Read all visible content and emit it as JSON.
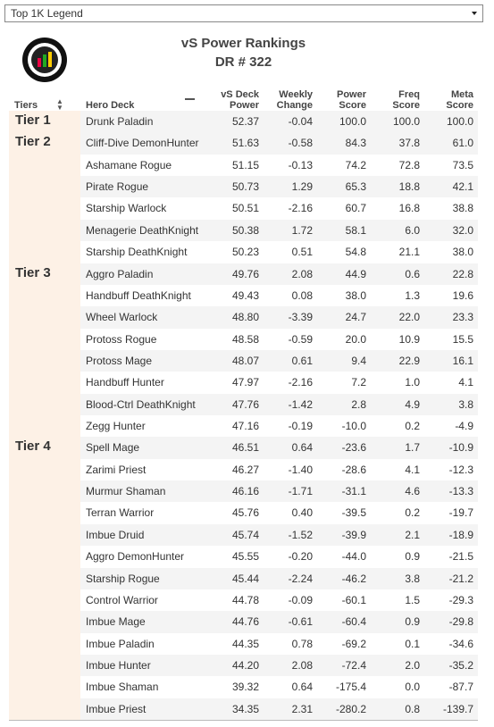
{
  "dropdown": "Top 1K Legend",
  "header": {
    "title": "vS Power Rankings",
    "subtitle": "DR # 322"
  },
  "table": {
    "columns": [
      "Tiers",
      "Hero Deck",
      "vS Deck Power",
      "Weekly Change",
      "Power Score",
      "Freq Score",
      "Meta Score"
    ],
    "groups": [
      {
        "tier": "Tier 1",
        "rows": [
          [
            "Drunk Paladin",
            "52.37",
            "-0.04",
            "100.0",
            "100.0",
            "100.0"
          ]
        ]
      },
      {
        "tier": "Tier 2",
        "rows": [
          [
            "Cliff-Dive DemonHunter",
            "51.63",
            "-0.58",
            "84.3",
            "37.8",
            "61.0"
          ],
          [
            "Ashamane Rogue",
            "51.15",
            "-0.13",
            "74.2",
            "72.8",
            "73.5"
          ],
          [
            "Pirate Rogue",
            "50.73",
            "1.29",
            "65.3",
            "18.8",
            "42.1"
          ],
          [
            "Starship Warlock",
            "50.51",
            "-2.16",
            "60.7",
            "16.8",
            "38.8"
          ],
          [
            "Menagerie DeathKnight",
            "50.38",
            "1.72",
            "58.1",
            "6.0",
            "32.0"
          ],
          [
            "Starship DeathKnight",
            "50.23",
            "0.51",
            "54.8",
            "21.1",
            "38.0"
          ]
        ]
      },
      {
        "tier": "Tier 3",
        "rows": [
          [
            "Aggro Paladin",
            "49.76",
            "2.08",
            "44.9",
            "0.6",
            "22.8"
          ],
          [
            "Handbuff DeathKnight",
            "49.43",
            "0.08",
            "38.0",
            "1.3",
            "19.6"
          ],
          [
            "Wheel Warlock",
            "48.80",
            "-3.39",
            "24.7",
            "22.0",
            "23.3"
          ],
          [
            "Protoss Rogue",
            "48.58",
            "-0.59",
            "20.0",
            "10.9",
            "15.5"
          ],
          [
            "Protoss Mage",
            "48.07",
            "0.61",
            "9.4",
            "22.9",
            "16.1"
          ],
          [
            "Handbuff Hunter",
            "47.97",
            "-2.16",
            "7.2",
            "1.0",
            "4.1"
          ],
          [
            "Blood-Ctrl DeathKnight",
            "47.76",
            "-1.42",
            "2.8",
            "4.9",
            "3.8"
          ],
          [
            "Zegg Hunter",
            "47.16",
            "-0.19",
            "-10.0",
            "0.2",
            "-4.9"
          ]
        ]
      },
      {
        "tier": "Tier 4",
        "rows": [
          [
            "Spell Mage",
            "46.51",
            "0.64",
            "-23.6",
            "1.7",
            "-10.9"
          ],
          [
            "Zarimi Priest",
            "46.27",
            "-1.40",
            "-28.6",
            "4.1",
            "-12.3"
          ],
          [
            "Murmur Shaman",
            "46.16",
            "-1.71",
            "-31.1",
            "4.6",
            "-13.3"
          ],
          [
            "Terran Warrior",
            "45.76",
            "0.40",
            "-39.5",
            "0.2",
            "-19.7"
          ],
          [
            "Imbue Druid",
            "45.74",
            "-1.52",
            "-39.9",
            "2.1",
            "-18.9"
          ],
          [
            "Aggro DemonHunter",
            "45.55",
            "-0.20",
            "-44.0",
            "0.9",
            "-21.5"
          ],
          [
            "Starship Rogue",
            "45.44",
            "-2.24",
            "-46.2",
            "3.8",
            "-21.2"
          ],
          [
            "Control Warrior",
            "44.78",
            "-0.09",
            "-60.1",
            "1.5",
            "-29.3"
          ],
          [
            "Imbue Mage",
            "44.76",
            "-0.61",
            "-60.4",
            "0.9",
            "-29.8"
          ],
          [
            "Imbue Paladin",
            "44.35",
            "0.78",
            "-69.2",
            "0.1",
            "-34.6"
          ],
          [
            "Imbue Hunter",
            "44.20",
            "2.08",
            "-72.4",
            "2.0",
            "-35.2"
          ],
          [
            "Imbue Shaman",
            "39.32",
            "0.64",
            "-175.4",
            "0.0",
            "-87.7"
          ],
          [
            "Imbue Priest",
            "34.35",
            "2.31",
            "-280.2",
            "0.8",
            "-139.7"
          ]
        ]
      }
    ]
  }
}
